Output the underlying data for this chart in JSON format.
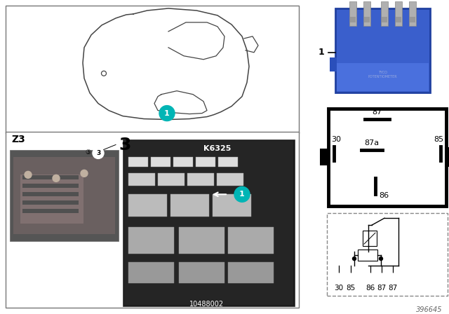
{
  "bg_color": "#ffffff",
  "title_part_num": "396645",
  "teal_color": "#00b5b5",
  "blue_relay_body": "#3a5fcc",
  "blue_relay_dark": "#2040aa",
  "pin_color": "#aaaaaa",
  "border_color": "#555555",
  "black": "#000000",
  "white": "#ffffff",
  "gray_photo": "#888888",
  "dark_photo": "#1a1a1a",
  "relay_pin_labels": [
    "87",
    "87a",
    "30",
    "85",
    "86"
  ],
  "schematic_labels": [
    "30",
    "85",
    "86",
    "87",
    "87"
  ],
  "K6325_label": "K6325",
  "Z3_label": "Z3",
  "part_num": "396645"
}
